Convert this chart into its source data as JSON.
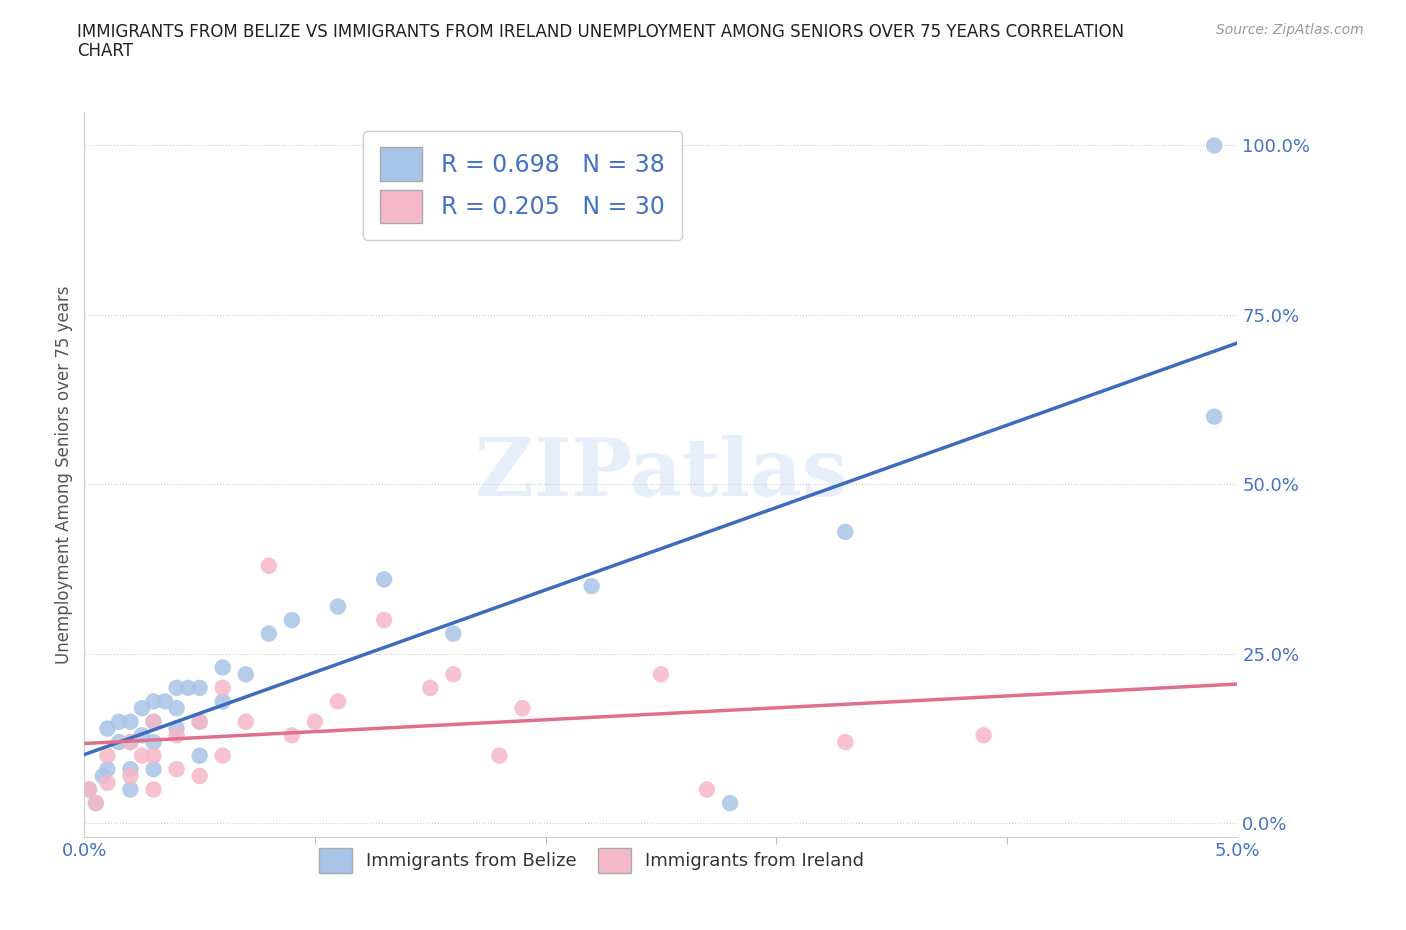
{
  "title_line1": "IMMIGRANTS FROM BELIZE VS IMMIGRANTS FROM IRELAND UNEMPLOYMENT AMONG SENIORS OVER 75 YEARS CORRELATION",
  "title_line2": "CHART",
  "source": "Source: ZipAtlas.com",
  "ylabel": "Unemployment Among Seniors over 75 years",
  "xlim": [
    0.0,
    0.05
  ],
  "ylim": [
    -0.02,
    1.05
  ],
  "belize_R": 0.698,
  "belize_N": 38,
  "ireland_R": 0.205,
  "ireland_N": 30,
  "belize_color": "#a8c4e8",
  "ireland_color": "#f5b8c8",
  "belize_line_color": "#3d6bbf",
  "ireland_line_color": "#e0708a",
  "belize_points_x": [
    0.0002,
    0.0005,
    0.0008,
    0.001,
    0.001,
    0.0015,
    0.0015,
    0.002,
    0.002,
    0.002,
    0.002,
    0.0025,
    0.0025,
    0.003,
    0.003,
    0.003,
    0.003,
    0.0035,
    0.004,
    0.004,
    0.004,
    0.0045,
    0.005,
    0.005,
    0.005,
    0.006,
    0.006,
    0.007,
    0.008,
    0.009,
    0.011,
    0.013,
    0.016,
    0.022,
    0.028,
    0.033,
    0.049,
    0.049
  ],
  "belize_points_y": [
    0.05,
    0.03,
    0.07,
    0.08,
    0.14,
    0.12,
    0.15,
    0.05,
    0.08,
    0.12,
    0.15,
    0.13,
    0.17,
    0.08,
    0.12,
    0.15,
    0.18,
    0.18,
    0.14,
    0.17,
    0.2,
    0.2,
    0.1,
    0.15,
    0.2,
    0.18,
    0.23,
    0.22,
    0.28,
    0.3,
    0.32,
    0.36,
    0.28,
    0.35,
    0.03,
    0.43,
    0.6,
    1.0
  ],
  "ireland_points_x": [
    0.0002,
    0.0005,
    0.001,
    0.001,
    0.002,
    0.002,
    0.0025,
    0.003,
    0.003,
    0.003,
    0.004,
    0.004,
    0.005,
    0.005,
    0.006,
    0.006,
    0.007,
    0.008,
    0.009,
    0.01,
    0.011,
    0.013,
    0.015,
    0.016,
    0.018,
    0.019,
    0.025,
    0.027,
    0.033,
    0.039
  ],
  "ireland_points_y": [
    0.05,
    0.03,
    0.06,
    0.1,
    0.07,
    0.12,
    0.1,
    0.05,
    0.1,
    0.15,
    0.08,
    0.13,
    0.07,
    0.15,
    0.1,
    0.2,
    0.15,
    0.38,
    0.13,
    0.15,
    0.18,
    0.3,
    0.2,
    0.22,
    0.1,
    0.17,
    0.22,
    0.05,
    0.12,
    0.13
  ],
  "yticks": [
    0.0,
    0.25,
    0.5,
    0.75,
    1.0
  ],
  "ytick_labels": [
    "0.0%",
    "25.0%",
    "50.0%",
    "75.0%",
    "100.0%"
  ],
  "xtick_labels": [
    "0.0%",
    "5.0%"
  ],
  "background_color": "#ffffff",
  "grid_color": "#cccccc",
  "tick_color": "#4472c4"
}
